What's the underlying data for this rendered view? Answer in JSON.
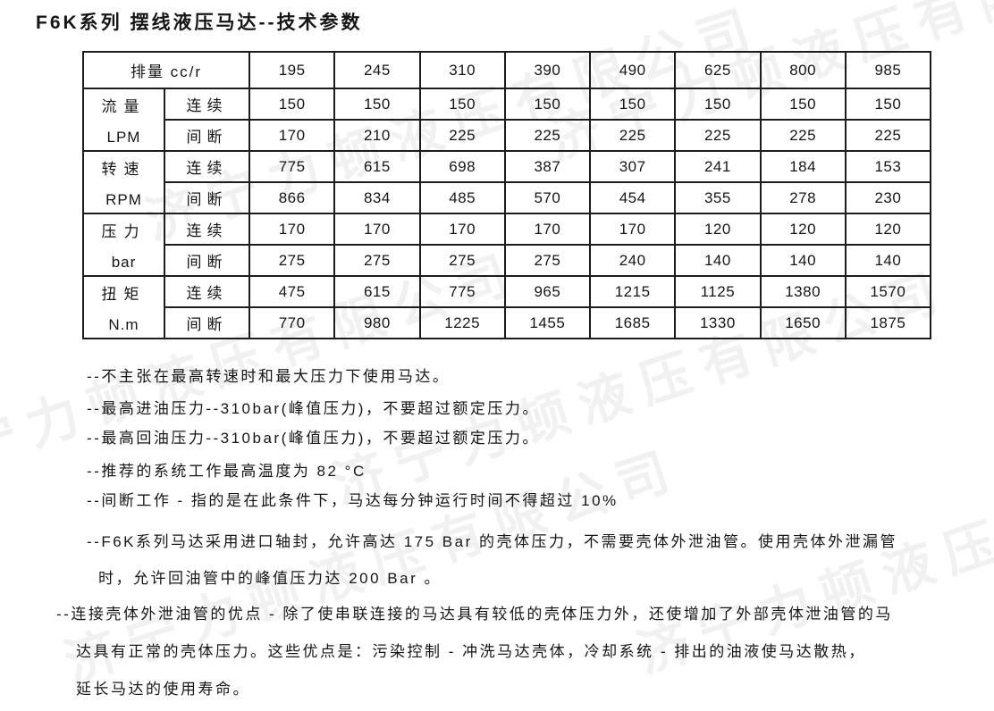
{
  "title": "F6K系列 摆线液压马达--技术参数",
  "watermark": {
    "text": "济宁力顿液压有限公司",
    "color": "rgba(0,0,0,0.055)"
  },
  "table": {
    "header_label": "排量 cc/r",
    "displacements": [
      "195",
      "245",
      "310",
      "390",
      "490",
      "625",
      "800",
      "985"
    ],
    "row_groups": [
      {
        "name": "流量",
        "unit": "LPM",
        "continuous_label": "连续",
        "intermittent_label": "间断",
        "continuous": [
          "150",
          "150",
          "150",
          "150",
          "150",
          "150",
          "150",
          "150"
        ],
        "intermittent": [
          "170",
          "210",
          "225",
          "225",
          "225",
          "225",
          "225",
          "225"
        ]
      },
      {
        "name": "转速",
        "unit": "RPM",
        "continuous_label": "连续",
        "intermittent_label": "间断",
        "continuous": [
          "775",
          "615",
          "698",
          "387",
          "307",
          "241",
          "184",
          "153"
        ],
        "intermittent": [
          "866",
          "834",
          "485",
          "570",
          "454",
          "355",
          "278",
          "230"
        ]
      },
      {
        "name": "压力",
        "unit": "bar",
        "continuous_label": "连续",
        "intermittent_label": "间断",
        "continuous": [
          "170",
          "170",
          "170",
          "170",
          "170",
          "120",
          "120",
          "120"
        ],
        "intermittent": [
          "275",
          "275",
          "275",
          "275",
          "240",
          "140",
          "140",
          "140"
        ]
      },
      {
        "name": "扭矩",
        "unit": "N.m",
        "continuous_label": "连续",
        "intermittent_label": "间断",
        "continuous": [
          "475",
          "615",
          "775",
          "965",
          "1215",
          "1125",
          "1380",
          "1570"
        ],
        "intermittent": [
          "770",
          "980",
          "1225",
          "1455",
          "1685",
          "1330",
          "1650",
          "1875"
        ]
      }
    ]
  },
  "notes": [
    "--不主张在最高转速时和最大压力下使用马达。",
    "--最高进油压力--310bar(峰值压力)，不要超过额定压力。",
    "--最高回油压力--310bar(峰值压力)，不要超过额定压力。",
    "--推荐的系统工作最高温度为 82 °C",
    "--间断工作 - 指的是在此条件下，马达每分钟运行时间不得超过 10%",
    "--F6K系列马达采用进口轴封，允许高达 175 Bar 的壳体压力，不需要壳体外泄油管。使用壳体外泄漏管",
    "时，允许回油管中的峰值压力达 200 Bar 。",
    "--连接壳体外泄油管的优点 - 除了使串联连接的马达具有较低的壳体压力外，还使增加了外部壳体泄油管的马",
    "达具有正常的壳体压力。这些优点是：污染控制 - 冲洗马达壳体，冷却系统 - 排出的油液使马达散热，",
    "延长马达的使用寿命。"
  ]
}
